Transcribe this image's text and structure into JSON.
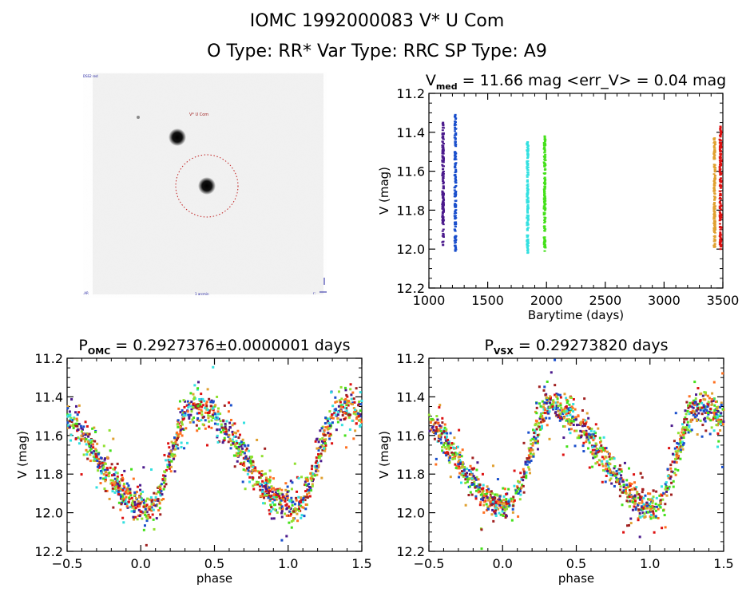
{
  "header": {
    "title": "IOMC 1992000083    V* U Com",
    "subtitle": "O Type: RR*   Var Type: RRC   SP Type: A9"
  },
  "image_panel": {
    "target_label": "V* U Com",
    "corner_top_left": "DSS2 red",
    "bottom_center": "1 arcmin"
  },
  "chart_data": [
    {
      "id": "lightcurve-time",
      "type": "scatter",
      "title_main": "V",
      "title_sub": "med",
      "title_rest": " = 11.66 mag <err_V> = 0.04 mag",
      "xlabel": "Barytime (days)",
      "ylabel": "V (mag)",
      "xlim": [
        1000,
        3500
      ],
      "ylim": [
        12.2,
        11.2
      ],
      "y_inverted": true,
      "xticks": [
        "1000",
        "1500",
        "2000",
        "2500",
        "3000",
        "3500"
      ],
      "yticks": [
        "11.2",
        "11.4",
        "11.6",
        "11.8",
        "12.0",
        "12.2"
      ],
      "grid": false,
      "series": [
        {
          "name": "season-1",
          "color": "#4b1a8c",
          "x": 1120,
          "ymin": 11.35,
          "ymax": 11.98
        },
        {
          "name": "season-2",
          "color": "#1a4fcc",
          "x": 1225,
          "ymin": 11.31,
          "ymax": 12.01
        },
        {
          "name": "season-3",
          "color": "#33e0e0",
          "x": 1840,
          "ymin": 11.45,
          "ymax": 12.02
        },
        {
          "name": "season-4",
          "color": "#44e01a",
          "x": 1985,
          "ymin": 11.42,
          "ymax": 12.01
        },
        {
          "name": "season-5",
          "color": "#e0a030",
          "x": 3430,
          "ymin": 11.43,
          "ymax": 11.99
        },
        {
          "name": "season-6",
          "color": "#dd1111",
          "x": 3480,
          "ymin": 11.37,
          "ymax": 12.0
        }
      ]
    },
    {
      "id": "phased-omc",
      "type": "scatter",
      "title_main": "P",
      "title_sub": "OMC",
      "title_rest": " = 0.2927376±0.0000001 days",
      "xlabel": "phase",
      "ylabel": "V (mag)",
      "xlim": [
        -0.5,
        1.5
      ],
      "ylim": [
        12.2,
        11.2
      ],
      "y_inverted": true,
      "xticks": [
        "−0.5",
        "0.0",
        "0.5",
        "1.0",
        "1.5"
      ],
      "yticks": [
        "11.2",
        "11.4",
        "11.6",
        "11.8",
        "12.0",
        "12.2"
      ],
      "grid": false,
      "curve": {
        "mean": 11.71,
        "amplitude": 0.26,
        "max_phase": 0.36,
        "min_phase": 0.05,
        "scatter": 0.04
      }
    },
    {
      "id": "phased-vsx",
      "type": "scatter",
      "title_main": "P",
      "title_sub": "VSX",
      "title_rest": " = 0.29273820 days",
      "xlabel": "phase",
      "ylabel": "V (mag)",
      "xlim": [
        -0.5,
        1.5
      ],
      "ylim": [
        12.2,
        11.2
      ],
      "y_inverted": true,
      "xticks": [
        "−0.5",
        "0.0",
        "0.5",
        "1.0",
        "1.5"
      ],
      "yticks": [
        "11.2",
        "11.4",
        "11.6",
        "11.8",
        "12.0",
        "12.2"
      ],
      "grid": false,
      "curve": {
        "mean": 11.71,
        "amplitude": 0.26,
        "max_phase": 0.33,
        "min_phase": 0.03,
        "scatter": 0.04
      }
    }
  ],
  "season_colors": [
    "#4b1a8c",
    "#1a4fcc",
    "#33e0e0",
    "#44e01a",
    "#e0a030",
    "#dd1111",
    "#a02020",
    "#ff7020",
    "#90e030"
  ]
}
